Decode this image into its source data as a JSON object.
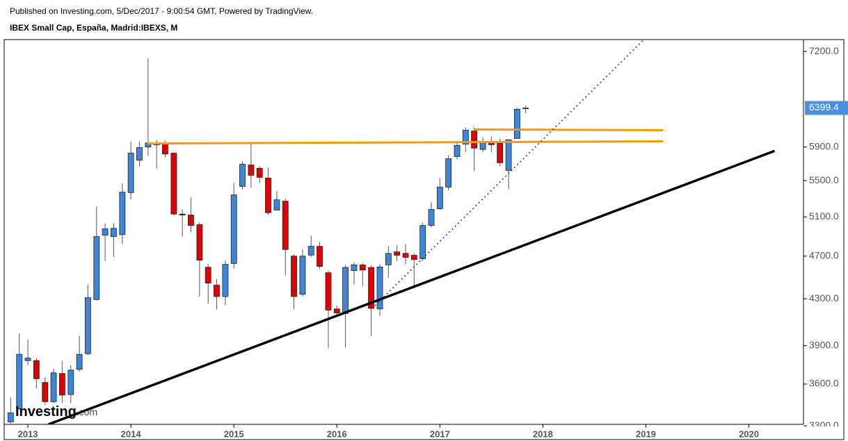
{
  "header": {
    "published": "Published on Investing.com, 5/Dec/2017 - 9:00:54 GMT, Powered by TradingView.",
    "symbol": "IBEX Small Cap, España, Madrid:IBEXS, M"
  },
  "chart_data": {
    "type": "candlestick",
    "log": true,
    "up_color": "#3d85d8",
    "down_color": "#e00000",
    "wick_color": "#555555",
    "x": [
      2012.833,
      2012.917,
      2013,
      2013.083,
      2013.167,
      2013.25,
      2013.333,
      2013.417,
      2013.5,
      2013.583,
      2013.667,
      2013.75,
      2013.833,
      2013.917,
      2014,
      2014.083,
      2014.167,
      2014.25,
      2014.333,
      2014.417,
      2014.5,
      2014.583,
      2014.667,
      2014.75,
      2014.833,
      2014.917,
      2015,
      2015.083,
      2015.167,
      2015.25,
      2015.333,
      2015.417,
      2015.5,
      2015.583,
      2015.667,
      2015.75,
      2015.833,
      2015.917,
      2016,
      2016.083,
      2016.167,
      2016.25,
      2016.333,
      2016.417,
      2016.5,
      2016.583,
      2016.667,
      2016.75,
      2016.833,
      2016.917,
      2017,
      2017.083,
      2017.167,
      2017.25,
      2017.333,
      2017.417,
      2017.5,
      2017.583,
      2017.667,
      2017.75,
      2017.833
    ],
    "open": [
      3327,
      3420,
      3780,
      3780,
      3612,
      3470,
      3680,
      3522,
      3712,
      3835,
      4293,
      4910,
      4895,
      4915,
      5365,
      5740,
      5900,
      5935,
      5935,
      5825,
      5130,
      5120,
      5018,
      4592,
      4424,
      4320,
      4628,
      5435,
      5683,
      5643,
      5530,
      5173,
      5270,
      4700,
      4340,
      4710,
      4797,
      4540,
      4210,
      4170,
      4560,
      4615,
      4590,
      4210,
      4615,
      4742,
      4727,
      4708,
      4674,
      5010,
      5188,
      5427,
      5784,
      5935,
      6100,
      5870,
      5950,
      5950,
      5618,
      6005,
      6390
    ],
    "high": [
      3500,
      4000,
      3950,
      3800,
      3653,
      3717,
      3780,
      3745,
      3980,
      4430,
      5210,
      5030,
      5035,
      5470,
      5965,
      5970,
      7100,
      5985,
      5980,
      5835,
      5180,
      5310,
      5045,
      4628,
      4480,
      4660,
      5475,
      5725,
      5945,
      5668,
      5652,
      5380,
      5300,
      4715,
      4765,
      4903,
      4840,
      4560,
      4240,
      4615,
      4640,
      4628,
      4607,
      4620,
      4797,
      4811,
      4818,
      4727,
      5040,
      5262,
      5530,
      5800,
      5950,
      6147,
      6147,
      6022,
      6030,
      6005,
      5990,
      6400,
      6430
    ],
    "low": [
      3315,
      3410,
      3745,
      3565,
      3447,
      3460,
      3460,
      3460,
      3695,
      3825,
      4285,
      4650,
      4690,
      4818,
      5290,
      5665,
      5790,
      5640,
      5775,
      5120,
      4895,
      4940,
      4320,
      4255,
      4205,
      4243,
      4580,
      5403,
      5420,
      5475,
      5120,
      5173,
      4515,
      4210,
      4320,
      4690,
      4575,
      3880,
      4140,
      3885,
      4430,
      4418,
      3980,
      4150,
      4495,
      4650,
      4620,
      4392,
      4652,
      4990,
      5173,
      5395,
      5750,
      5835,
      5610,
      5835,
      5835,
      5668,
      5403,
      6005,
      6330
    ],
    "close": [
      3390,
      3830,
      3800,
      3640,
      3470,
      3685,
      3518,
      3706,
      3830,
      4310,
      4895,
      4975,
      4980,
      5370,
      5825,
      5894,
      5950,
      5930,
      5815,
      5130,
      5120,
      5010,
      4660,
      4443,
      4320,
      4620,
      5340,
      5692,
      5562,
      5538,
      5145,
      5285,
      4765,
      4320,
      4700,
      4797,
      4600,
      4200,
      4175,
      4590,
      4615,
      4565,
      4215,
      4595,
      4727,
      4708,
      4688,
      4667,
      5010,
      5180,
      5427,
      5758,
      5920,
      6110,
      5886,
      5950,
      5928,
      5710,
      5990,
      6383,
      6399.4
    ],
    "xlim": [
      2012.77,
      2020.53
    ],
    "xticks": [
      2013,
      2014,
      2015,
      2016,
      2017,
      2018,
      2019,
      2020
    ],
    "ylim": [
      3310,
      7380
    ],
    "yticks": [
      {
        "value": 3300,
        "label": "3300.0"
      },
      {
        "value": 3600,
        "label": "3600.0"
      },
      {
        "value": 3900,
        "label": "3900.0"
      },
      {
        "value": 4300,
        "label": "4300.0"
      },
      {
        "value": 4700,
        "label": "4700.0"
      },
      {
        "value": 5100,
        "label": "5100.0"
      },
      {
        "value": 5500,
        "label": "5500.0"
      },
      {
        "value": 5900,
        "label": "5900.0"
      },
      {
        "value": 7200,
        "label": "7200.0"
      }
    ],
    "last_price": {
      "value": 6399.4,
      "label": "6399.4",
      "color": "#4a8fe0"
    },
    "trendlines": [
      {
        "x": [
          2014.16,
          2019.17
        ],
        "y": [
          5943,
          5970
        ],
        "color": "#f39c12",
        "width": 3,
        "dash": false
      },
      {
        "x": [
          2017.33,
          2019.17
        ],
        "y": [
          6120,
          6110
        ],
        "color": "#f39c12",
        "width": 3,
        "dash": false
      },
      {
        "x": [
          2013.2,
          2020.25
        ],
        "y": [
          3310,
          5852
        ],
        "color": "#000000",
        "width": 3.5,
        "dash": false
      },
      {
        "x": [
          2016.34,
          2018.98
        ],
        "y": [
          4212,
          7380
        ],
        "color": "#333333",
        "width": 1.5,
        "dash": true
      }
    ],
    "logo": {
      "name": "Investing",
      "suffix": ".com"
    }
  }
}
